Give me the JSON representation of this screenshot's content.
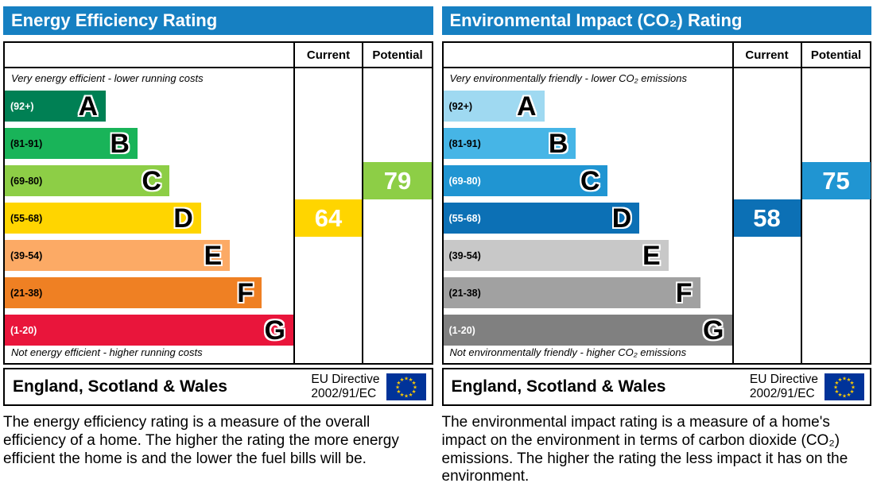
{
  "theme": {
    "header_blue": "#1680c2",
    "eu_flag_blue": "#003399",
    "eu_star_yellow": "#ffcc00"
  },
  "panels": [
    {
      "title": "Energy Efficiency Rating",
      "columns": {
        "current": "Current",
        "potential": "Potential"
      },
      "top_caption": "Very energy efficient - lower running costs",
      "bottom_caption": "Not energy efficient - higher running costs",
      "bands": [
        {
          "range": "(92+)",
          "letter": "A",
          "color": "#008054",
          "label_color": "#ffffff",
          "width_pct": 35
        },
        {
          "range": "(81-91)",
          "letter": "B",
          "color": "#19b459",
          "label_color": "#000000",
          "width_pct": 46
        },
        {
          "range": "(69-80)",
          "letter": "C",
          "color": "#8dce46",
          "label_color": "#000000",
          "width_pct": 57
        },
        {
          "range": "(55-68)",
          "letter": "D",
          "color": "#ffd500",
          "label_color": "#000000",
          "width_pct": 68
        },
        {
          "range": "(39-54)",
          "letter": "E",
          "color": "#fcaa65",
          "label_color": "#000000",
          "width_pct": 78
        },
        {
          "range": "(21-38)",
          "letter": "F",
          "color": "#ef8023",
          "label_color": "#000000",
          "width_pct": 89
        },
        {
          "range": "(1-20)",
          "letter": "G",
          "color": "#e9153b",
          "label_color": "#ffffff",
          "width_pct": 100
        }
      ],
      "current": {
        "value": "64",
        "band_index": 3,
        "color": "#ffd500"
      },
      "potential": {
        "value": "79",
        "band_index": 2,
        "color": "#8dce46"
      },
      "footer": {
        "region": "England, Scotland & Wales",
        "directive_line1": "EU Directive",
        "directive_line2": "2002/91/EC"
      },
      "description": "The energy efficiency rating is a measure of the overall efficiency of a home. The higher the rating the more energy efficient the home is and the lower the fuel bills will be."
    },
    {
      "title": "Environmental Impact (CO₂) Rating",
      "columns": {
        "current": "Current",
        "potential": "Potential"
      },
      "top_caption": "Very environmentally friendly - lower CO₂ emissions",
      "bottom_caption": "Not environmentally friendly - higher CO₂ emissions",
      "bands": [
        {
          "range": "(92+)",
          "letter": "A",
          "color": "#9fd9f1",
          "label_color": "#000000",
          "width_pct": 35
        },
        {
          "range": "(81-91)",
          "letter": "B",
          "color": "#46b5e6",
          "label_color": "#000000",
          "width_pct": 46
        },
        {
          "range": "(69-80)",
          "letter": "C",
          "color": "#2095d2",
          "label_color": "#ffffff",
          "width_pct": 57
        },
        {
          "range": "(55-68)",
          "letter": "D",
          "color": "#0c70b5",
          "label_color": "#ffffff",
          "width_pct": 68
        },
        {
          "range": "(39-54)",
          "letter": "E",
          "color": "#c8c8c8",
          "label_color": "#000000",
          "width_pct": 78
        },
        {
          "range": "(21-38)",
          "letter": "F",
          "color": "#a1a1a1",
          "label_color": "#000000",
          "width_pct": 89
        },
        {
          "range": "(1-20)",
          "letter": "G",
          "color": "#808080",
          "label_color": "#ffffff",
          "width_pct": 100
        }
      ],
      "current": {
        "value": "58",
        "band_index": 3,
        "color": "#0c70b5"
      },
      "potential": {
        "value": "75",
        "band_index": 2,
        "color": "#2095d2"
      },
      "footer": {
        "region": "England, Scotland & Wales",
        "directive_line1": "EU Directive",
        "directive_line2": "2002/91/EC"
      },
      "description": "The environmental impact rating is a measure of a home's impact on the environment in terms of carbon dioxide (CO₂) emissions. The higher the rating the less impact it has on the environment."
    }
  ],
  "chart_data": [
    {
      "type": "bar",
      "title": "Energy Efficiency Rating",
      "categories": [
        "A (92+)",
        "B (81-91)",
        "C (69-80)",
        "D (55-68)",
        "E (39-54)",
        "F (21-38)",
        "G (1-20)"
      ],
      "band_colors": [
        "#008054",
        "#19b459",
        "#8dce46",
        "#ffd500",
        "#fcaa65",
        "#ef8023",
        "#e9153b"
      ],
      "bar_widths_pct": [
        35,
        46,
        57,
        68,
        78,
        89,
        100
      ],
      "current": 64,
      "current_band": "D",
      "potential": 79,
      "potential_band": "C",
      "value_range": [
        1,
        100
      ],
      "notes": [
        "Very energy efficient - lower running costs",
        "Not energy efficient - higher running costs"
      ]
    },
    {
      "type": "bar",
      "title": "Environmental Impact (CO₂) Rating",
      "categories": [
        "A (92+)",
        "B (81-91)",
        "C (69-80)",
        "D (55-68)",
        "E (39-54)",
        "F (21-38)",
        "G (1-20)"
      ],
      "band_colors": [
        "#9fd9f1",
        "#46b5e6",
        "#2095d2",
        "#0c70b5",
        "#c8c8c8",
        "#a1a1a1",
        "#808080"
      ],
      "bar_widths_pct": [
        35,
        46,
        57,
        68,
        78,
        89,
        100
      ],
      "current": 58,
      "current_band": "D",
      "potential": 75,
      "potential_band": "C",
      "value_range": [
        1,
        100
      ],
      "notes": [
        "Very environmentally friendly - lower CO₂ emissions",
        "Not environmentally friendly - higher CO₂ emissions"
      ]
    }
  ]
}
